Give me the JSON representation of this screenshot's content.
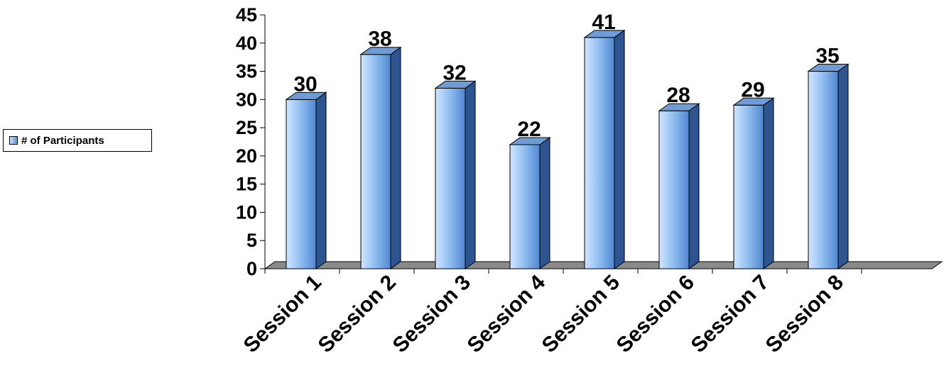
{
  "chart_data": {
    "type": "bar",
    "style": "3d-column",
    "categories": [
      "Session 1",
      "Session 2",
      "Session 3",
      "Session 4",
      "Session 5",
      "Session 6",
      "Session 7",
      "Session 8"
    ],
    "series": [
      {
        "name": "# of Participants",
        "values": [
          30,
          38,
          32,
          22,
          41,
          28,
          29,
          35
        ]
      }
    ],
    "yticks": [
      "0",
      "5",
      "10",
      "15",
      "20",
      "25",
      "30",
      "35",
      "40",
      "45"
    ],
    "ylim": [
      0,
      45
    ],
    "xlabel": "",
    "ylabel": "",
    "title": "",
    "grid": false,
    "data_labels": true,
    "legend_position": "left",
    "colors": {
      "bar_light": "#cfe6ff",
      "bar_mid": "#8ebcf0",
      "bar_dark": "#4f86cf",
      "bar_side": "#2e5590",
      "bar_top": "#6f9bd6",
      "floor": "#8a8a8a"
    }
  }
}
